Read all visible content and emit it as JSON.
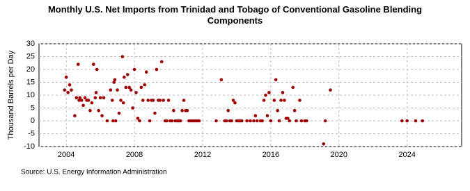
{
  "chart_data": {
    "type": "scatter",
    "title": "Monthly U.S. Net Imports from Trinidad and Tobago of Conventional Gasoline Blending Components",
    "ylabel": "Thousand Barrels per Day",
    "source": "Source: U.S. Energy Information Administration",
    "color": "#a00000",
    "grid": true,
    "xlim": [
      2002.4,
      2027.2
    ],
    "ylim": [
      -10,
      30
    ],
    "xticks": [
      2004,
      2008,
      2012,
      2016,
      2020,
      2024
    ],
    "yticks": [
      -10,
      -5,
      0,
      5,
      10,
      15,
      20,
      25,
      30
    ],
    "x": [
      2003.9,
      2004.0,
      2004.1,
      2004.2,
      2004.3,
      2004.5,
      2004.6,
      2004.7,
      2004.75,
      2004.8,
      2004.9,
      2005.0,
      2005.1,
      2005.2,
      2005.3,
      2005.4,
      2005.5,
      2005.6,
      2005.7,
      2005.75,
      2005.8,
      2005.9,
      2006.0,
      2006.1,
      2006.2,
      2006.4,
      2006.6,
      2006.7,
      2006.75,
      2006.8,
      2006.85,
      2006.9,
      2007.0,
      2007.1,
      2007.2,
      2007.3,
      2007.35,
      2007.4,
      2007.5,
      2007.6,
      2007.7,
      2007.8,
      2007.9,
      2008.0,
      2008.1,
      2008.2,
      2008.3,
      2008.4,
      2008.5,
      2008.6,
      2008.7,
      2008.8,
      2008.9,
      2009.0,
      2009.1,
      2009.2,
      2009.3,
      2009.4,
      2009.5,
      2009.6,
      2009.7,
      2009.8,
      2009.9,
      2010.0,
      2010.1,
      2010.2,
      2010.3,
      2010.4,
      2010.5,
      2010.6,
      2010.7,
      2010.8,
      2010.9,
      2011.0,
      2011.1,
      2011.2,
      2011.3,
      2011.4,
      2011.5,
      2011.6,
      2011.7,
      2011.8,
      2012.8,
      2013.1,
      2013.3,
      2013.4,
      2013.5,
      2013.6,
      2013.7,
      2013.8,
      2013.9,
      2014.0,
      2014.1,
      2014.2,
      2014.3,
      2014.6,
      2014.8,
      2015.0,
      2015.1,
      2015.2,
      2015.4,
      2015.5,
      2015.6,
      2015.7,
      2015.8,
      2015.9,
      2016.0,
      2016.2,
      2016.3,
      2016.4,
      2016.5,
      2016.6,
      2016.7,
      2016.8,
      2016.9,
      2017.0,
      2017.1,
      2017.3,
      2017.4,
      2017.5,
      2017.7,
      2017.8,
      2018.0,
      2018.1,
      2019.1,
      2019.2,
      2019.5,
      2023.7,
      2024.0,
      2024.5,
      2024.9
    ],
    "values": [
      12,
      17,
      11,
      14,
      12,
      2,
      9,
      22,
      8,
      9,
      8,
      6,
      9,
      8,
      8,
      4,
      7,
      22,
      9,
      11,
      20,
      4,
      9,
      2,
      9,
      0,
      12,
      8,
      0,
      15,
      16,
      0,
      12,
      3,
      8,
      25,
      7,
      17,
      13,
      18,
      13,
      12,
      5,
      20,
      11,
      1,
      0,
      13,
      8,
      14,
      19,
      8,
      0,
      8,
      8,
      3,
      20,
      8,
      8,
      23,
      8,
      0,
      0,
      8,
      0,
      0,
      4,
      0,
      0,
      0,
      0,
      4,
      8,
      4,
      4,
      0,
      0,
      0,
      0,
      0,
      0,
      0,
      0,
      16,
      0,
      0,
      4,
      0,
      0,
      8,
      7,
      0,
      0,
      0,
      0,
      0,
      0,
      0,
      2,
      0,
      0,
      0,
      8,
      10,
      2,
      11,
      0,
      8,
      16,
      4,
      0,
      8,
      11,
      8,
      1,
      1,
      0,
      13,
      4,
      0,
      8,
      0,
      0,
      0,
      -9,
      0,
      12,
      0,
      0,
      0,
      0
    ]
  }
}
